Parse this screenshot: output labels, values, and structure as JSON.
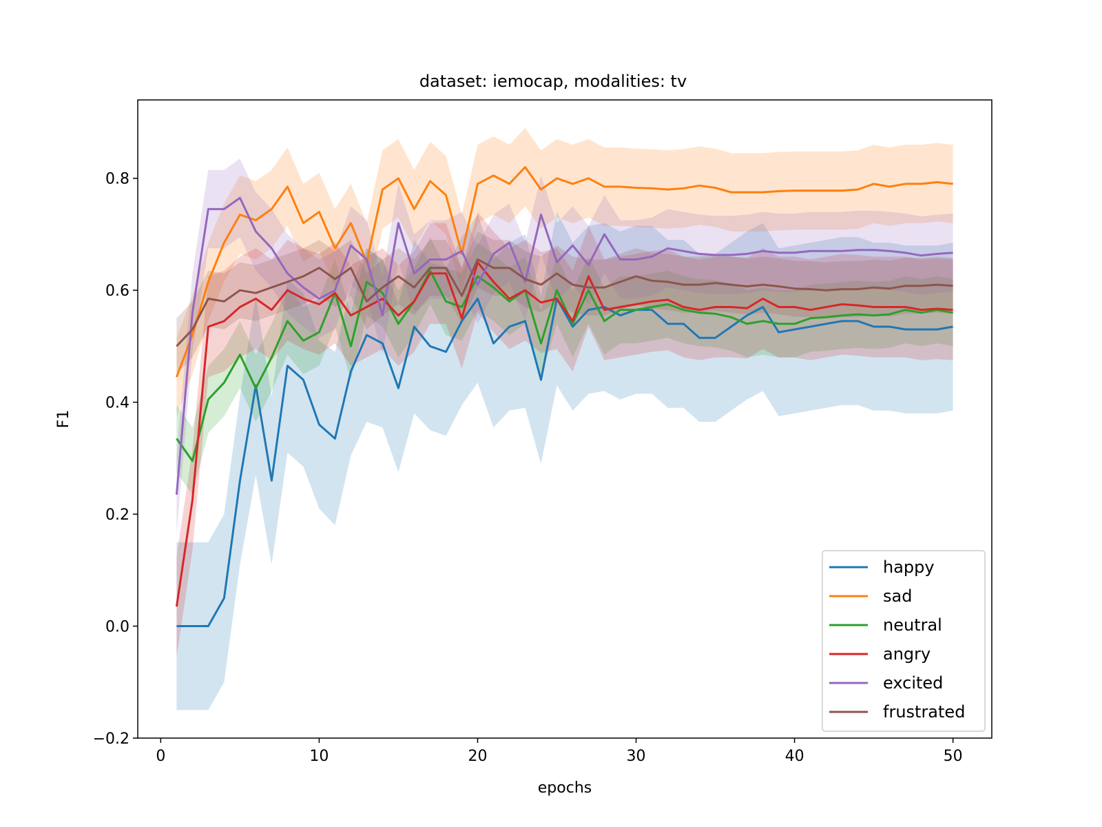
{
  "chart_data": {
    "type": "line",
    "title": "dataset: iemocap, modalities: tv",
    "xlabel": "epochs",
    "ylabel": "F1",
    "xlim": [
      -1.45,
      52.45
    ],
    "ylim": [
      -0.2,
      0.94
    ],
    "x_ticks": [
      0,
      10,
      20,
      30,
      40,
      50
    ],
    "x_tick_labels": [
      "0",
      "10",
      "20",
      "30",
      "40",
      "50"
    ],
    "y_ticks": [
      -0.2,
      0.0,
      0.2,
      0.4,
      0.6,
      0.8
    ],
    "y_tick_labels": [
      "−0.2",
      "0.0",
      "0.2",
      "0.4",
      "0.6",
      "0.8"
    ],
    "grid": false,
    "legend_position": "lower-right",
    "shaded_band": "mean ± spread",
    "x": [
      1,
      2,
      3,
      4,
      5,
      6,
      7,
      8,
      9,
      10,
      11,
      12,
      13,
      14,
      15,
      16,
      17,
      18,
      19,
      20,
      21,
      22,
      23,
      24,
      25,
      26,
      27,
      28,
      29,
      30,
      31,
      32,
      33,
      34,
      35,
      36,
      37,
      38,
      39,
      40,
      41,
      42,
      43,
      44,
      45,
      46,
      47,
      48,
      49,
      50
    ],
    "series": [
      {
        "name": "happy",
        "color": "#1f77b4",
        "values": [
          0.0,
          0.0,
          0.0,
          0.05,
          0.26,
          0.43,
          0.26,
          0.465,
          0.44,
          0.36,
          0.335,
          0.455,
          0.52,
          0.505,
          0.425,
          0.535,
          0.5,
          0.49,
          0.545,
          0.585,
          0.505,
          0.535,
          0.545,
          0.44,
          0.585,
          0.535,
          0.565,
          0.57,
          0.555,
          0.565,
          0.565,
          0.54,
          0.54,
          0.515,
          0.515,
          0.535,
          0.555,
          0.57,
          0.525,
          0.53,
          0.535,
          0.54,
          0.545,
          0.545,
          0.535,
          0.535,
          0.53,
          0.53,
          0.53,
          0.535
        ],
        "spread": [
          0.15,
          0.15,
          0.15,
          0.15,
          0.15,
          0.16,
          0.15,
          0.155,
          0.155,
          0.15,
          0.155,
          0.15,
          0.155,
          0.15,
          0.15,
          0.155,
          0.15,
          0.15,
          0.15,
          0.15,
          0.15,
          0.15,
          0.155,
          0.15,
          0.155,
          0.15,
          0.15,
          0.15,
          0.15,
          0.15,
          0.15,
          0.15,
          0.15,
          0.15,
          0.15,
          0.15,
          0.15,
          0.15,
          0.15,
          0.15,
          0.15,
          0.15,
          0.15,
          0.15,
          0.15,
          0.15,
          0.15,
          0.15,
          0.15,
          0.15
        ]
      },
      {
        "name": "sad",
        "color": "#ff7f0e",
        "values": [
          0.445,
          0.52,
          0.615,
          0.685,
          0.735,
          0.725,
          0.745,
          0.785,
          0.72,
          0.74,
          0.675,
          0.72,
          0.65,
          0.78,
          0.8,
          0.745,
          0.795,
          0.77,
          0.665,
          0.79,
          0.805,
          0.79,
          0.82,
          0.78,
          0.8,
          0.79,
          0.8,
          0.785,
          0.785,
          0.783,
          0.782,
          0.78,
          0.782,
          0.787,
          0.783,
          0.775,
          0.775,
          0.775,
          0.777,
          0.778,
          0.778,
          0.778,
          0.778,
          0.78,
          0.79,
          0.785,
          0.79,
          0.79,
          0.793,
          0.79
        ],
        "spread": [
          0.07,
          0.07,
          0.07,
          0.07,
          0.07,
          0.07,
          0.07,
          0.07,
          0.07,
          0.07,
          0.07,
          0.07,
          0.07,
          0.07,
          0.07,
          0.07,
          0.07,
          0.07,
          0.07,
          0.07,
          0.07,
          0.07,
          0.07,
          0.07,
          0.07,
          0.07,
          0.07,
          0.07,
          0.07,
          0.07,
          0.07,
          0.07,
          0.07,
          0.07,
          0.07,
          0.07,
          0.07,
          0.07,
          0.07,
          0.07,
          0.07,
          0.07,
          0.07,
          0.07,
          0.07,
          0.07,
          0.07,
          0.07,
          0.07,
          0.07
        ]
      },
      {
        "name": "neutral",
        "color": "#2ca02c",
        "values": [
          0.335,
          0.295,
          0.405,
          0.435,
          0.485,
          0.425,
          0.48,
          0.545,
          0.51,
          0.525,
          0.595,
          0.5,
          0.615,
          0.595,
          0.54,
          0.58,
          0.635,
          0.58,
          0.57,
          0.625,
          0.605,
          0.58,
          0.6,
          0.505,
          0.6,
          0.54,
          0.6,
          0.545,
          0.565,
          0.565,
          0.57,
          0.575,
          0.565,
          0.56,
          0.558,
          0.552,
          0.54,
          0.545,
          0.54,
          0.54,
          0.55,
          0.552,
          0.555,
          0.557,
          0.555,
          0.557,
          0.565,
          0.56,
          0.565,
          0.56
        ],
        "spread": [
          0.06,
          0.06,
          0.06,
          0.06,
          0.06,
          0.06,
          0.06,
          0.06,
          0.06,
          0.06,
          0.06,
          0.06,
          0.06,
          0.06,
          0.06,
          0.06,
          0.06,
          0.06,
          0.06,
          0.06,
          0.06,
          0.06,
          0.06,
          0.06,
          0.06,
          0.06,
          0.06,
          0.06,
          0.06,
          0.06,
          0.06,
          0.06,
          0.06,
          0.06,
          0.06,
          0.06,
          0.06,
          0.06,
          0.06,
          0.06,
          0.06,
          0.06,
          0.06,
          0.06,
          0.06,
          0.06,
          0.06,
          0.06,
          0.06,
          0.06
        ]
      },
      {
        "name": "angry",
        "color": "#d62728",
        "values": [
          0.035,
          0.225,
          0.535,
          0.545,
          0.57,
          0.585,
          0.565,
          0.6,
          0.585,
          0.575,
          0.595,
          0.555,
          0.57,
          0.585,
          0.555,
          0.58,
          0.63,
          0.63,
          0.55,
          0.65,
          0.615,
          0.585,
          0.6,
          0.578,
          0.585,
          0.545,
          0.625,
          0.565,
          0.57,
          0.575,
          0.58,
          0.583,
          0.57,
          0.565,
          0.57,
          0.57,
          0.568,
          0.585,
          0.57,
          0.57,
          0.565,
          0.57,
          0.575,
          0.573,
          0.57,
          0.57,
          0.57,
          0.565,
          0.567,
          0.565
        ],
        "spread": [
          0.09,
          0.09,
          0.09,
          0.09,
          0.09,
          0.09,
          0.09,
          0.09,
          0.09,
          0.09,
          0.09,
          0.09,
          0.09,
          0.09,
          0.09,
          0.09,
          0.09,
          0.09,
          0.09,
          0.09,
          0.09,
          0.09,
          0.09,
          0.09,
          0.09,
          0.09,
          0.09,
          0.09,
          0.09,
          0.09,
          0.09,
          0.09,
          0.09,
          0.09,
          0.09,
          0.09,
          0.09,
          0.09,
          0.09,
          0.09,
          0.09,
          0.09,
          0.09,
          0.09,
          0.09,
          0.09,
          0.09,
          0.09,
          0.09,
          0.09
        ]
      },
      {
        "name": "excited",
        "color": "#9467bd",
        "values": [
          0.235,
          0.56,
          0.745,
          0.745,
          0.765,
          0.705,
          0.675,
          0.63,
          0.605,
          0.585,
          0.6,
          0.68,
          0.655,
          0.555,
          0.72,
          0.63,
          0.655,
          0.655,
          0.67,
          0.61,
          0.665,
          0.685,
          0.615,
          0.735,
          0.65,
          0.68,
          0.645,
          0.7,
          0.655,
          0.655,
          0.66,
          0.675,
          0.67,
          0.665,
          0.663,
          0.663,
          0.665,
          0.67,
          0.667,
          0.667,
          0.67,
          0.67,
          0.67,
          0.672,
          0.672,
          0.67,
          0.667,
          0.662,
          0.665,
          0.667
        ],
        "spread": [
          0.07,
          0.07,
          0.07,
          0.07,
          0.07,
          0.07,
          0.07,
          0.07,
          0.07,
          0.07,
          0.07,
          0.07,
          0.07,
          0.07,
          0.07,
          0.07,
          0.07,
          0.07,
          0.07,
          0.07,
          0.07,
          0.07,
          0.07,
          0.07,
          0.07,
          0.07,
          0.07,
          0.07,
          0.07,
          0.07,
          0.07,
          0.07,
          0.07,
          0.07,
          0.07,
          0.07,
          0.07,
          0.07,
          0.07,
          0.07,
          0.07,
          0.07,
          0.07,
          0.07,
          0.07,
          0.07,
          0.07,
          0.07,
          0.07,
          0.07
        ]
      },
      {
        "name": "frustrated",
        "color": "#8c564b",
        "values": [
          0.5,
          0.53,
          0.585,
          0.58,
          0.6,
          0.595,
          0.605,
          0.615,
          0.625,
          0.64,
          0.62,
          0.64,
          0.58,
          0.605,
          0.625,
          0.605,
          0.64,
          0.64,
          0.59,
          0.655,
          0.64,
          0.64,
          0.62,
          0.61,
          0.63,
          0.61,
          0.605,
          0.605,
          0.615,
          0.625,
          0.617,
          0.615,
          0.61,
          0.61,
          0.613,
          0.61,
          0.607,
          0.61,
          0.607,
          0.603,
          0.602,
          0.6,
          0.602,
          0.602,
          0.605,
          0.603,
          0.608,
          0.608,
          0.61,
          0.608
        ],
        "spread": [
          0.05,
          0.05,
          0.05,
          0.05,
          0.05,
          0.05,
          0.05,
          0.05,
          0.05,
          0.05,
          0.05,
          0.05,
          0.05,
          0.05,
          0.05,
          0.05,
          0.05,
          0.05,
          0.05,
          0.05,
          0.05,
          0.05,
          0.05,
          0.05,
          0.05,
          0.05,
          0.05,
          0.05,
          0.05,
          0.05,
          0.05,
          0.05,
          0.05,
          0.05,
          0.05,
          0.05,
          0.05,
          0.05,
          0.05,
          0.05,
          0.05,
          0.05,
          0.05,
          0.05,
          0.05,
          0.05,
          0.05,
          0.05,
          0.05,
          0.05
        ]
      }
    ]
  }
}
